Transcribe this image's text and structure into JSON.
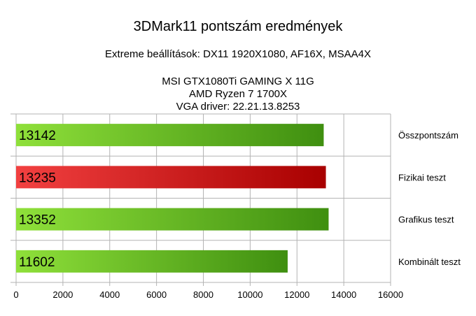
{
  "chart_data": {
    "type": "bar",
    "orientation": "horizontal",
    "title": "3DMark11 pontszám eredmények",
    "subtitle": "Extreme beállítások: DX11 1920X1080, AF16X, MSAA4X",
    "info_lines": [
      "MSI GTX1080Ti GAMING X 11G",
      "AMD Ryzen 7 1700X",
      "VGA driver: 22.21.13.8253"
    ],
    "categories": [
      "Összpontszám",
      "Fizikai teszt",
      "Grafikus teszt",
      "Kombinált teszt"
    ],
    "values": [
      13142,
      13235,
      13352,
      11602
    ],
    "data_labels": [
      "13142",
      "13235",
      "13352",
      "11602"
    ],
    "bar_colors": [
      "green",
      "red",
      "green",
      "green"
    ],
    "colors": {
      "green_light": "#8fe03a",
      "green_dark": "#3f8f10",
      "red_light": "#f24040",
      "red_dark": "#a80000",
      "grid": "#b3b3b3"
    },
    "xlim": [
      0,
      16000
    ],
    "x_ticks": [
      0,
      2000,
      4000,
      6000,
      8000,
      10000,
      12000,
      14000,
      16000
    ],
    "x_tick_labels": [
      "0",
      "2000",
      "4000",
      "6000",
      "8000",
      "10000",
      "12000",
      "14000",
      "16000"
    ],
    "grid": true,
    "category_labels_position": "right",
    "legend": "none"
  }
}
